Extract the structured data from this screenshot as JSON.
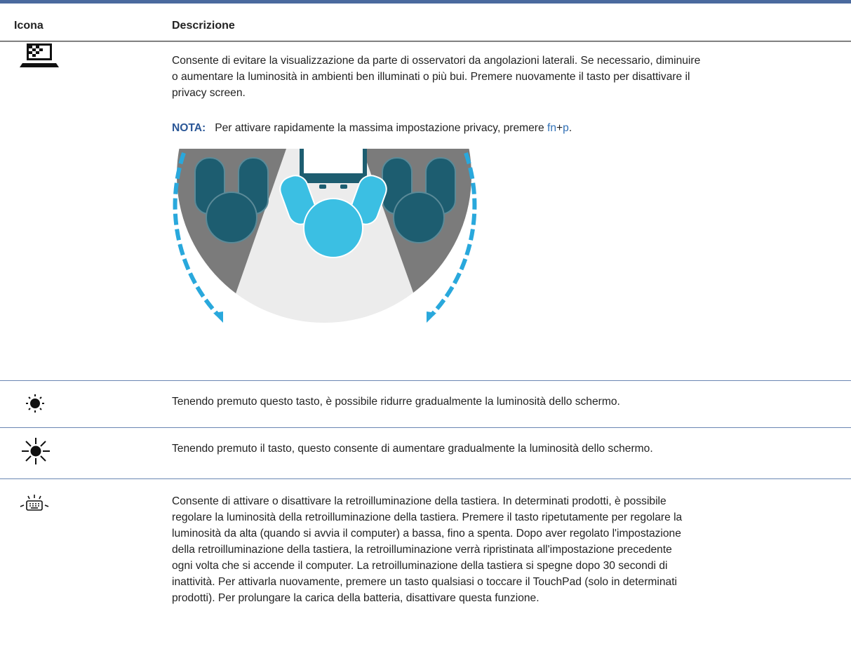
{
  "table": {
    "header": [
      "Icona",
      "Descrizione"
    ],
    "rows": [
      {
        "description": [
          "Consente di evitare la visualizzazione da parte di osservatori da angolazioni laterali. Se necessario, diminuire",
          "o aumentare la luminosità in ambienti ben illuminati o più bui. Premere nuovamente il tasto per disattivare il",
          "privacy screen."
        ],
        "note": {
          "label": "NOTA:",
          "text": "Per attivare rapidamente la massima impostazione privacy, premere ",
          "key1": "fn",
          "plus": "+",
          "key2": "p",
          "end": "."
        }
      },
      {
        "description": [
          "Tenendo premuto questo tasto, è possibile ridurre gradualmente la luminosità dello schermo."
        ]
      },
      {
        "description": [
          "Tenendo premuto il tasto, questo consente di aumentare gradualmente la luminosità dello schermo."
        ]
      },
      {
        "description": [
          "Consente di attivare o disattivare la retroilluminazione della tastiera. In determinati prodotti, è possibile",
          "regolare la luminosità della retroilluminazione della tastiera. Premere il tasto ripetutamente per regolare la",
          "luminosità da alta (quando si avvia il computer) a bassa, fino a spenta. Dopo aver regolato l'impostazione",
          "della retroilluminazione della tastiera, la retroilluminazione verrà ripristinata all'impostazione precedente",
          "ogni volta che si accende il computer. La retroilluminazione della tastiera si spegne dopo 30 secondi di",
          "inattività. Per attivarla nuovamente, premere un tasto qualsiasi o toccare il TouchPad (solo in determinati",
          "prodotti). Per prolungare la carica della batteria, disattivare questa funzione."
        ]
      }
    ]
  }
}
